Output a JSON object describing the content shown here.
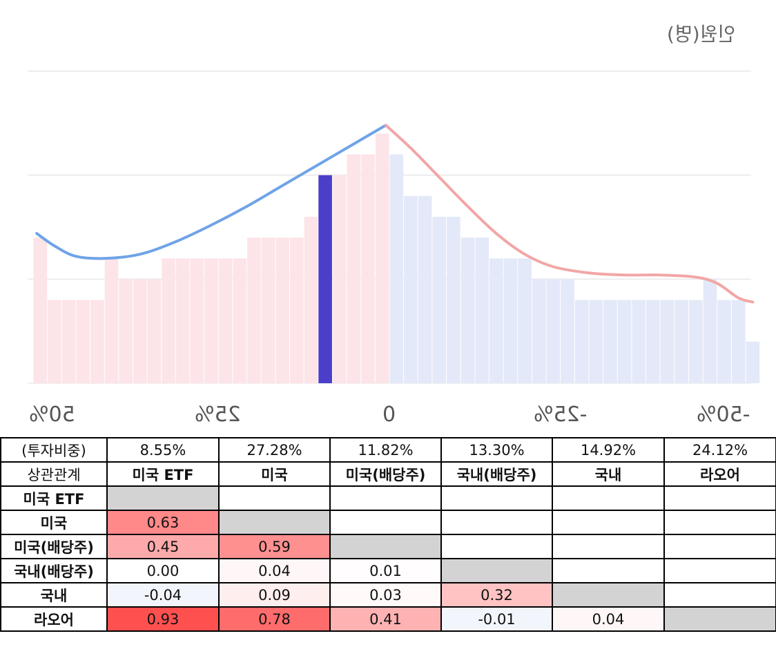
{
  "chart_data": {
    "type": "bar",
    "ylabel": "인원(명)",
    "x_tick_labels": [
      "50%",
      "25%",
      "0",
      "-25%",
      "-50%"
    ],
    "x_range": [
      50,
      -52
    ],
    "bins": [
      {
        "x": 49.0,
        "value": 7
      },
      {
        "x": 47.0,
        "value": 4
      },
      {
        "x": 45.0,
        "value": 4
      },
      {
        "x": 43.0,
        "value": 4
      },
      {
        "x": 41.0,
        "value": 4
      },
      {
        "x": 39.0,
        "value": 6
      },
      {
        "x": 37.0,
        "value": 5
      },
      {
        "x": 35.0,
        "value": 5
      },
      {
        "x": 33.0,
        "value": 5
      },
      {
        "x": 31.0,
        "value": 6
      },
      {
        "x": 29.0,
        "value": 6
      },
      {
        "x": 27.0,
        "value": 6
      },
      {
        "x": 25.0,
        "value": 6
      },
      {
        "x": 23.0,
        "value": 6
      },
      {
        "x": 21.0,
        "value": 6
      },
      {
        "x": 19.0,
        "value": 7
      },
      {
        "x": 17.0,
        "value": 7
      },
      {
        "x": 15.0,
        "value": 7
      },
      {
        "x": 13.0,
        "value": 7
      },
      {
        "x": 11.0,
        "value": 8
      },
      {
        "x": 9.0,
        "value": 10,
        "highlight": true
      },
      {
        "x": 7.0,
        "value": 10
      },
      {
        "x": 5.0,
        "value": 11
      },
      {
        "x": 3.0,
        "value": 11
      },
      {
        "x": 1.0,
        "value": 12
      },
      {
        "x": -1.0,
        "value": 11
      },
      {
        "x": -3.0,
        "value": 9
      },
      {
        "x": -5.0,
        "value": 9
      },
      {
        "x": -7.0,
        "value": 8
      },
      {
        "x": -9.0,
        "value": 8
      },
      {
        "x": -11.0,
        "value": 7
      },
      {
        "x": -13.0,
        "value": 7
      },
      {
        "x": -15.0,
        "value": 6
      },
      {
        "x": -17.0,
        "value": 6
      },
      {
        "x": -19.0,
        "value": 6
      },
      {
        "x": -21.0,
        "value": 5
      },
      {
        "x": -23.0,
        "value": 5
      },
      {
        "x": -25.0,
        "value": 5
      },
      {
        "x": -27.0,
        "value": 4
      },
      {
        "x": -29.0,
        "value": 4
      },
      {
        "x": -31.0,
        "value": 4
      },
      {
        "x": -33.0,
        "value": 4
      },
      {
        "x": -35.0,
        "value": 4
      },
      {
        "x": -37.0,
        "value": 4
      },
      {
        "x": -39.0,
        "value": 4
      },
      {
        "x": -41.0,
        "value": 4
      },
      {
        "x": -43.0,
        "value": 4
      },
      {
        "x": -45.0,
        "value": 5
      },
      {
        "x": -47.0,
        "value": 4
      },
      {
        "x": -49.0,
        "value": 4
      },
      {
        "x": -51.0,
        "value": 2
      }
    ],
    "ylim": [
      0,
      15
    ],
    "gridlines": [
      5,
      10,
      15
    ],
    "curves": [
      {
        "color": "#6fa3e8",
        "points": [
          [
            49.5,
            7.2
          ],
          [
            47,
            6.6
          ],
          [
            44,
            6.1
          ],
          [
            40,
            6.0
          ],
          [
            35,
            6.2
          ],
          [
            30,
            6.8
          ],
          [
            25,
            7.6
          ],
          [
            20,
            8.5
          ],
          [
            15,
            9.5
          ],
          [
            10,
            10.5
          ],
          [
            5,
            11.5
          ],
          [
            0.5,
            12.4
          ]
        ]
      },
      {
        "color": "#f2a6a6",
        "points": [
          [
            0.5,
            12.4
          ],
          [
            -3,
            11.3
          ],
          [
            -7,
            9.9
          ],
          [
            -11,
            8.5
          ],
          [
            -15,
            7.2
          ],
          [
            -19,
            6.2
          ],
          [
            -23,
            5.6
          ],
          [
            -28,
            5.3
          ],
          [
            -33,
            5.2
          ],
          [
            -38,
            5.2
          ],
          [
            -43,
            5.1
          ],
          [
            -46,
            4.8
          ],
          [
            -49,
            4.1
          ],
          [
            -51,
            3.9
          ]
        ]
      }
    ],
    "colors": {
      "left_bars": "#fde4e8",
      "right_bars": "#e3e9f8",
      "highlight_bar": "#4a3fc8"
    }
  },
  "table": {
    "weights_label": "(투자비중)",
    "weights": [
      "8.55%",
      "27.28%",
      "11.82%",
      "13.30%",
      "14.92%",
      "24.12%"
    ],
    "corr_label": "상관관계",
    "columns": [
      "미국 ETF",
      "미국",
      "미국(배당주)",
      "국내(배당주)",
      "국내",
      "라오어"
    ],
    "rows": [
      {
        "label": "미국 ETF",
        "cells": [
          null,
          "",
          "",
          "",
          "",
          ""
        ]
      },
      {
        "label": "미국",
        "cells": [
          "0.63",
          null,
          "",
          "",
          "",
          ""
        ]
      },
      {
        "label": "미국(배당주)",
        "cells": [
          "0.45",
          "0.59",
          null,
          "",
          "",
          ""
        ]
      },
      {
        "label": "국내(배당주)",
        "cells": [
          "0.00",
          "0.04",
          "0.01",
          null,
          "",
          ""
        ]
      },
      {
        "label": "국내",
        "cells": [
          "-0.04",
          "0.09",
          "0.03",
          "0.32",
          null,
          ""
        ]
      },
      {
        "label": "라오어",
        "cells": [
          "0.93",
          "0.78",
          "0.41",
          "-0.01",
          "0.04",
          null
        ]
      }
    ],
    "colors": {
      "diagonal": "#d3d3d3",
      "positive": "#ff5050",
      "negative": "#cfe0f5"
    }
  }
}
